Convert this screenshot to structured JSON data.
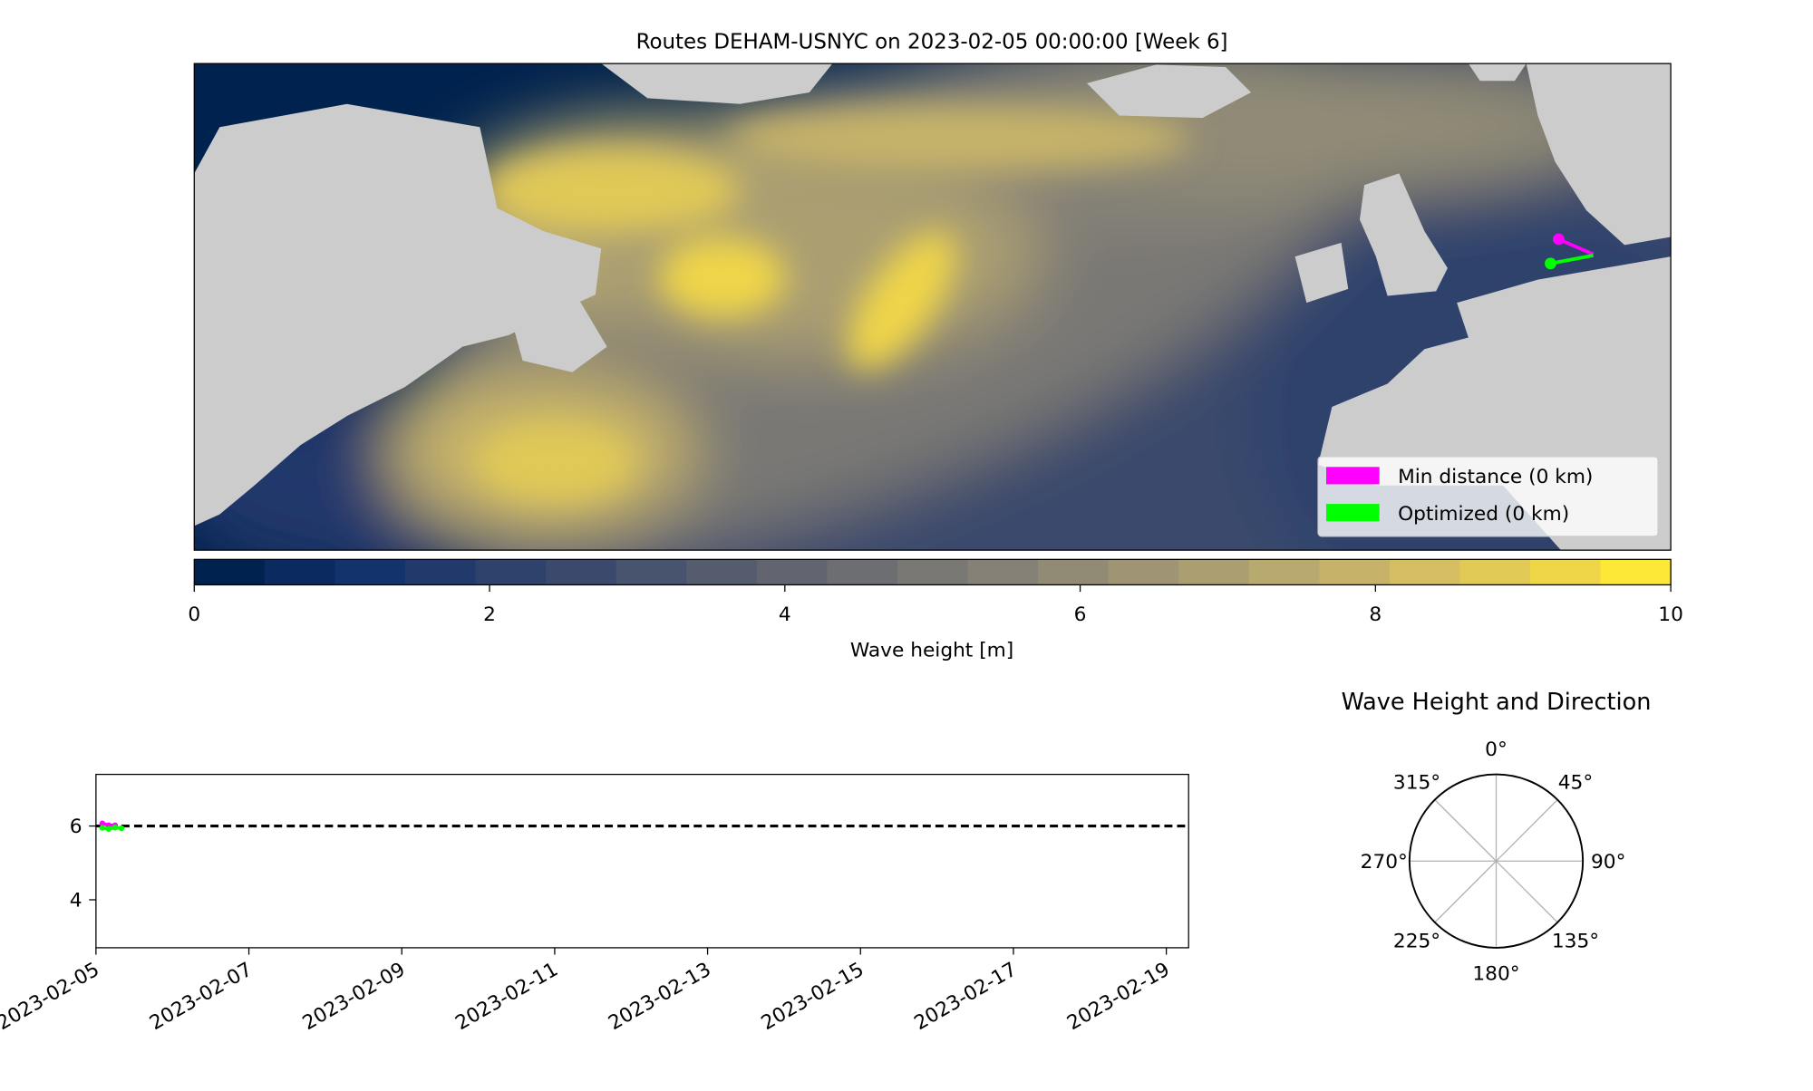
{
  "chart_data": [
    {
      "type": "heatmap",
      "title": "Routes DEHAM-USNYC on 2023-02-05 00:00:00 [Week 6]",
      "colorbar": {
        "label": "Wave height [m]",
        "range": [
          0,
          10
        ],
        "ticks": [
          "0",
          "2",
          "4",
          "6",
          "8",
          "10"
        ],
        "tick_values": [
          0,
          2,
          4,
          6,
          8,
          10
        ],
        "colormap": "cividis",
        "colors": [
          "#00224e",
          "#0a2a60",
          "#13336c",
          "#22396c",
          "#2f426c",
          "#3b4a6c",
          "#48536d",
          "#545c6e",
          "#626570",
          "#6d6e72",
          "#797875",
          "#858176",
          "#918b76",
          "#9f9575",
          "#ab9f72",
          "#b8a96f",
          "#c6b369",
          "#d4be61",
          "#e1c956",
          "#efd548",
          "#fde737"
        ]
      },
      "legend": {
        "placement": "lower-right",
        "items": [
          {
            "label": "Min distance (0 km)",
            "color": "#ff00ff"
          },
          {
            "label": "Optimized (0 km)",
            "color": "#00ff00"
          }
        ]
      }
    },
    {
      "type": "line",
      "x_ticks": [
        "2023-02-05",
        "2023-02-07",
        "2023-02-09",
        "2023-02-11",
        "2023-02-13",
        "2023-02-15",
        "2023-02-17",
        "2023-02-19"
      ],
      "xlim": [
        "2023-02-05",
        "2023-02-19 07:00"
      ],
      "y_ticks": [
        "4",
        "6"
      ],
      "ylim": [
        2.7,
        7.4
      ],
      "reference_line": {
        "y": 6,
        "style": "dashed",
        "color": "#000000"
      },
      "series": [
        {
          "color": "#ff00ff",
          "x": [
            "2023-02-05 02:00",
            "2023-02-05 04:00",
            "2023-02-05 06:00"
          ],
          "y": [
            6.07,
            6.02,
            6.02
          ]
        },
        {
          "color": "#00ff00",
          "x": [
            "2023-02-05 02:00",
            "2023-02-05 04:00",
            "2023-02-05 06:00",
            "2023-02-05 08:00"
          ],
          "y": [
            5.95,
            5.92,
            5.96,
            5.94
          ]
        }
      ]
    },
    {
      "type": "polar",
      "title": "Wave Height and Direction",
      "angle_labels": [
        "0°",
        "45°",
        "90°",
        "135°",
        "180°",
        "225°",
        "270°",
        "315°"
      ]
    }
  ]
}
